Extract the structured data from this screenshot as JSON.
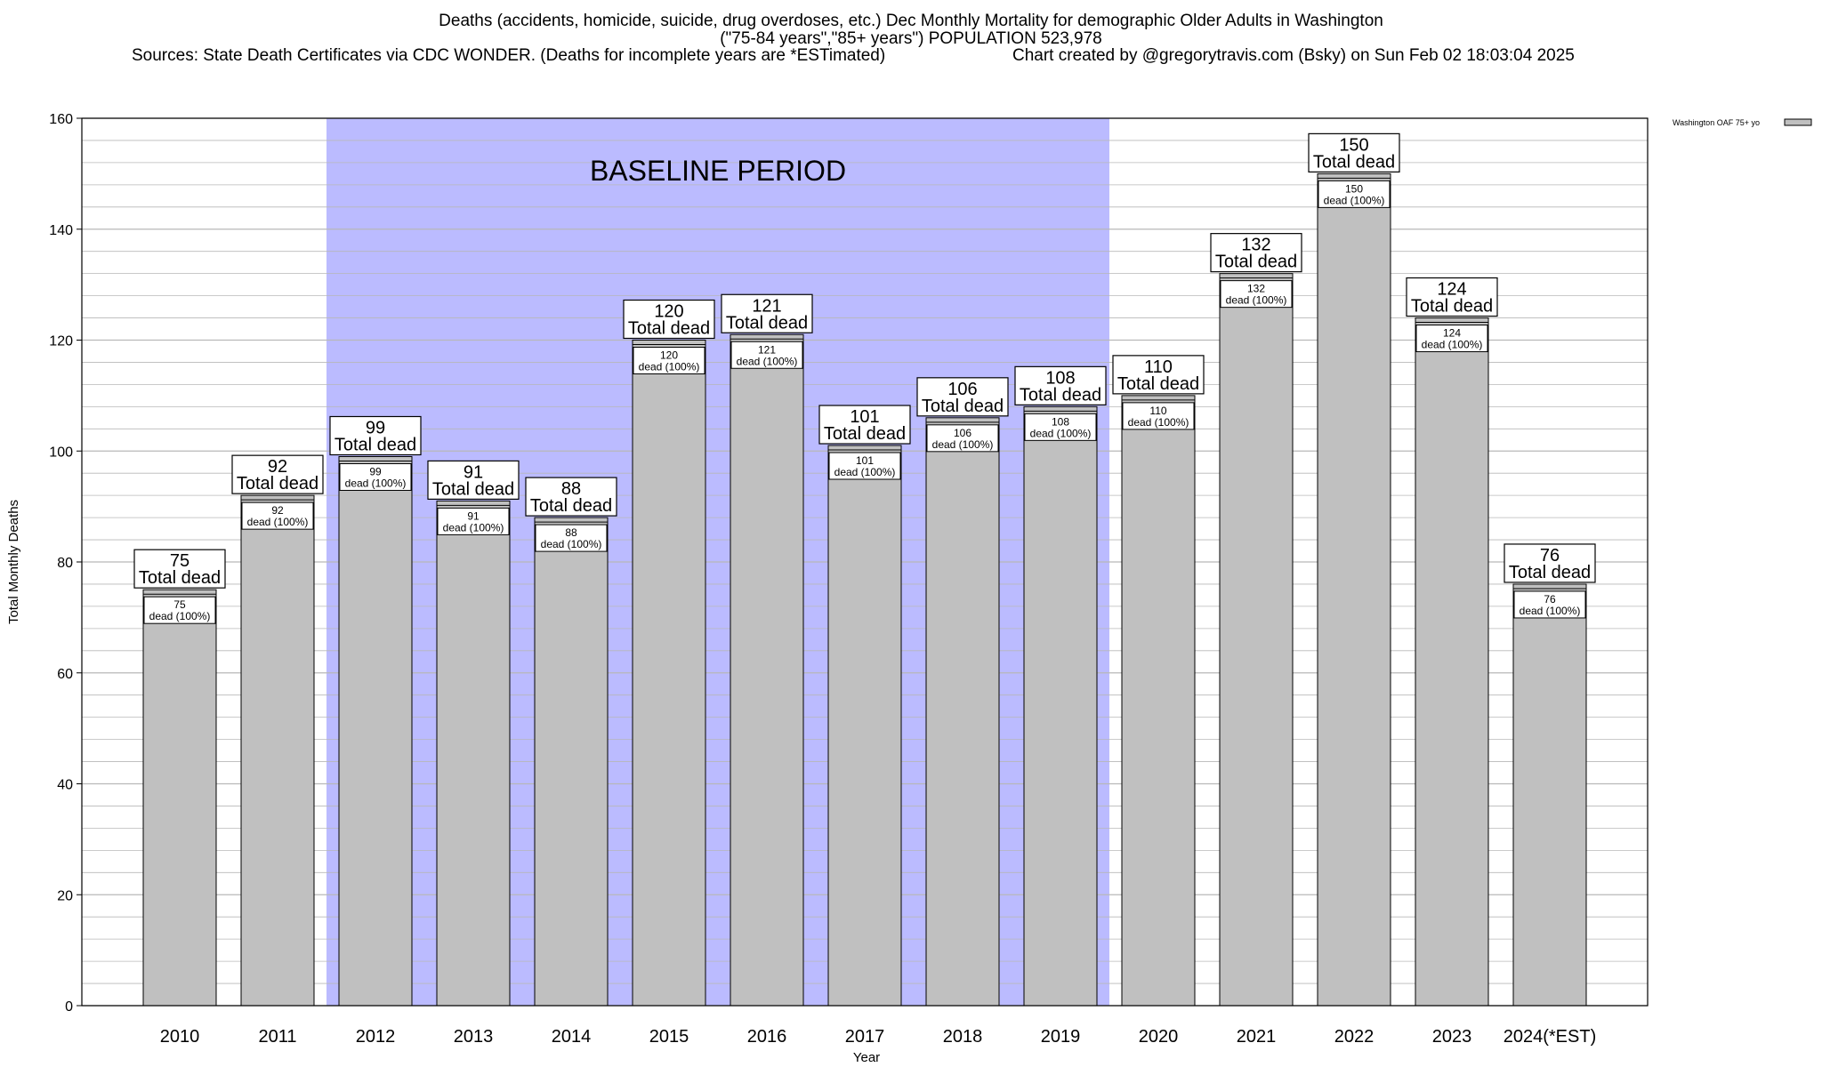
{
  "header": {
    "title_line1": "Deaths (accidents, homicide, suicide, drug overdoses, etc.) Dec Monthly Mortality for demographic Older Adults in Washington",
    "title_line2": "(\"75-84 years\",\"85+ years\") POPULATION 523,978",
    "sources": "Sources: State Death Certificates via CDC WONDER. (Deaths for incomplete years are *ESTimated)",
    "credit": "Chart created by @gregorytravis.com (Bsky) on Sun Feb 02 18:03:04 2025"
  },
  "chart_data": {
    "type": "bar",
    "xlabel": "Year",
    "ylabel": "Total Monthly Deaths",
    "ylim": [
      0,
      160
    ],
    "yticks": [
      0,
      20,
      40,
      60,
      80,
      100,
      120,
      140,
      160
    ],
    "grid": true,
    "legend_position": "top-right",
    "baseline_label": "BASELINE PERIOD",
    "baseline_range": [
      "2012",
      "2019"
    ],
    "total_label_suffix": "Total dead",
    "inner_label_suffix": "dead (100%)",
    "categories": [
      "2010",
      "2011",
      "2012",
      "2013",
      "2014",
      "2015",
      "2016",
      "2017",
      "2018",
      "2019",
      "2020",
      "2021",
      "2022",
      "2023",
      "2024(*EST)"
    ],
    "series": [
      {
        "name": "Washington OAF 75+ yo",
        "values": [
          75,
          92,
          99,
          91,
          88,
          120,
          121,
          101,
          106,
          108,
          110,
          132,
          150,
          124,
          76
        ]
      }
    ],
    "colors": {
      "bar": "#c0c0c0",
      "baseline": "#bbbbff",
      "grid": "#b8b8b8"
    }
  }
}
